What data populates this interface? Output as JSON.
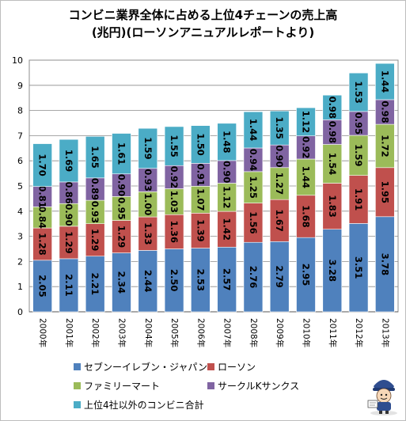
{
  "title_line1": "コンビニ業界全体に占める上位4チェーンの売上高",
  "title_line2": "(兆円)(ローソンアニュアルレポートより)",
  "chart_data": {
    "type": "bar",
    "stacked": true,
    "categories": [
      "2000年",
      "2001年",
      "2002年",
      "2003年",
      "2004年",
      "2005年",
      "2006年",
      "2007年",
      "2008年",
      "2009年",
      "2010年",
      "2011年",
      "2012年",
      "2013年"
    ],
    "ylim": [
      0,
      10
    ],
    "yticks": [
      0,
      1,
      2,
      3,
      4,
      5,
      6,
      7,
      8,
      9,
      10
    ],
    "grid": true,
    "legend_position": "bottom",
    "series": [
      {
        "name": "セブンーイレブン・ジャパン",
        "color": "#4f81bd",
        "values": [
          2.05,
          2.11,
          2.21,
          2.34,
          2.44,
          2.5,
          2.53,
          2.57,
          2.76,
          2.79,
          2.95,
          3.28,
          3.51,
          3.78
        ]
      },
      {
        "name": "ローソン",
        "color": "#c0504d",
        "values": [
          1.28,
          1.29,
          1.29,
          1.29,
          1.33,
          1.36,
          1.39,
          1.42,
          1.56,
          1.67,
          1.68,
          1.83,
          1.91,
          1.95
        ]
      },
      {
        "name": "ファミリーマート",
        "color": "#9bbb59",
        "values": [
          0.84,
          0.9,
          0.93,
          0.95,
          1.0,
          1.03,
          1.07,
          1.12,
          1.25,
          1.27,
          1.44,
          1.54,
          1.59,
          1.72
        ]
      },
      {
        "name": "サークルKサンクス",
        "color": "#8064a2",
        "values": [
          0.81,
          0.86,
          0.89,
          0.9,
          0.93,
          0.92,
          0.91,
          0.9,
          0.94,
          0.9,
          0.92,
          0.98,
          0.95,
          0.98
        ]
      },
      {
        "name": "上位4社以外のコンビニ合計",
        "color": "#4bacc6",
        "values": [
          1.7,
          1.69,
          1.65,
          1.61,
          1.59,
          1.55,
          1.5,
          1.48,
          1.44,
          1.35,
          1.12,
          0.98,
          1.53,
          1.44
        ]
      }
    ]
  }
}
